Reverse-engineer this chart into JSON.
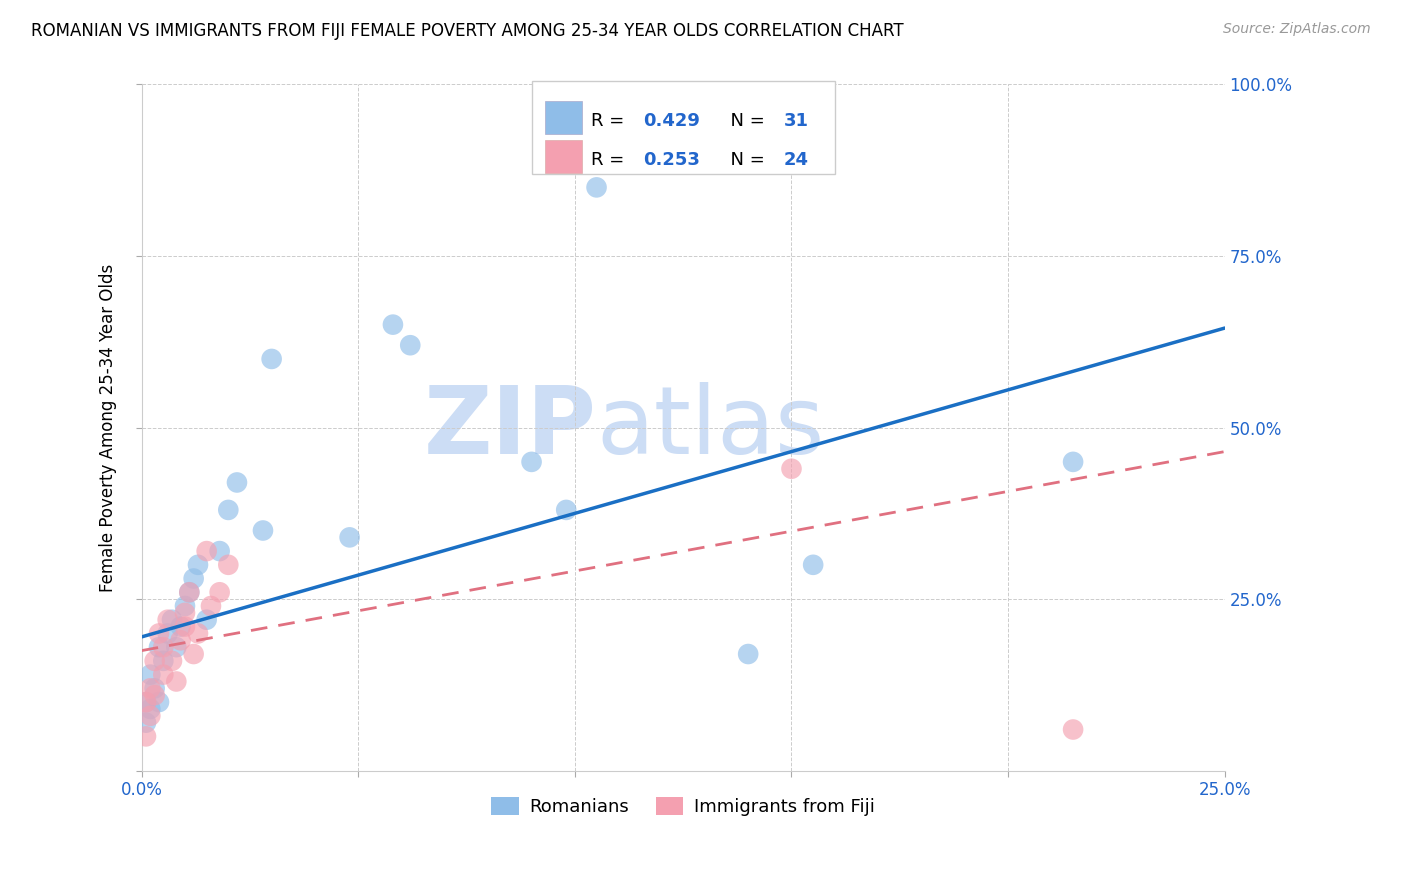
{
  "title": "ROMANIAN VS IMMIGRANTS FROM FIJI FEMALE POVERTY AMONG 25-34 YEAR OLDS CORRELATION CHART",
  "source": "Source: ZipAtlas.com",
  "ylabel": "Female Poverty Among 25-34 Year Olds",
  "xlim": [
    0.0,
    0.25
  ],
  "ylim": [
    0.0,
    1.0
  ],
  "romanians_x": [
    0.001,
    0.001,
    0.002,
    0.002,
    0.003,
    0.004,
    0.004,
    0.005,
    0.006,
    0.007,
    0.008,
    0.009,
    0.01,
    0.011,
    0.012,
    0.013,
    0.015,
    0.018,
    0.02,
    0.022,
    0.028,
    0.03,
    0.048,
    0.058,
    0.062,
    0.09,
    0.098,
    0.105,
    0.14,
    0.155,
    0.215
  ],
  "romanians_y": [
    0.1,
    0.07,
    0.14,
    0.09,
    0.12,
    0.18,
    0.1,
    0.16,
    0.2,
    0.22,
    0.18,
    0.21,
    0.24,
    0.26,
    0.28,
    0.3,
    0.22,
    0.32,
    0.38,
    0.42,
    0.35,
    0.6,
    0.34,
    0.65,
    0.62,
    0.45,
    0.38,
    0.85,
    0.17,
    0.3,
    0.45
  ],
  "fiji_x": [
    0.001,
    0.001,
    0.002,
    0.002,
    0.003,
    0.003,
    0.004,
    0.005,
    0.005,
    0.006,
    0.007,
    0.008,
    0.009,
    0.01,
    0.01,
    0.011,
    0.012,
    0.013,
    0.015,
    0.016,
    0.018,
    0.02,
    0.15,
    0.215
  ],
  "fiji_y": [
    0.1,
    0.05,
    0.12,
    0.08,
    0.16,
    0.11,
    0.2,
    0.14,
    0.18,
    0.22,
    0.16,
    0.13,
    0.19,
    0.23,
    0.21,
    0.26,
    0.17,
    0.2,
    0.32,
    0.24,
    0.26,
    0.3,
    0.44,
    0.06
  ],
  "rom_line_x0": 0.0,
  "rom_line_y0": 0.195,
  "rom_line_x1": 0.25,
  "rom_line_y1": 0.645,
  "fiji_line_x0": 0.0,
  "fiji_line_y0": 0.175,
  "fiji_line_x1": 0.25,
  "fiji_line_y1": 0.465,
  "romanian_color": "#8fbde8",
  "fiji_color": "#f4a0b0",
  "romanian_line_color": "#1a6fc4",
  "fiji_line_color": "#e07080",
  "background_color": "#ffffff",
  "watermark_text": "ZIPatlas",
  "watermark_color": "#ccddf5",
  "legend_r1": "0.429",
  "legend_n1": "31",
  "legend_r2": "0.253",
  "legend_n2": "24",
  "title_fontsize": 12,
  "axis_label_fontsize": 12,
  "tick_fontsize": 12
}
